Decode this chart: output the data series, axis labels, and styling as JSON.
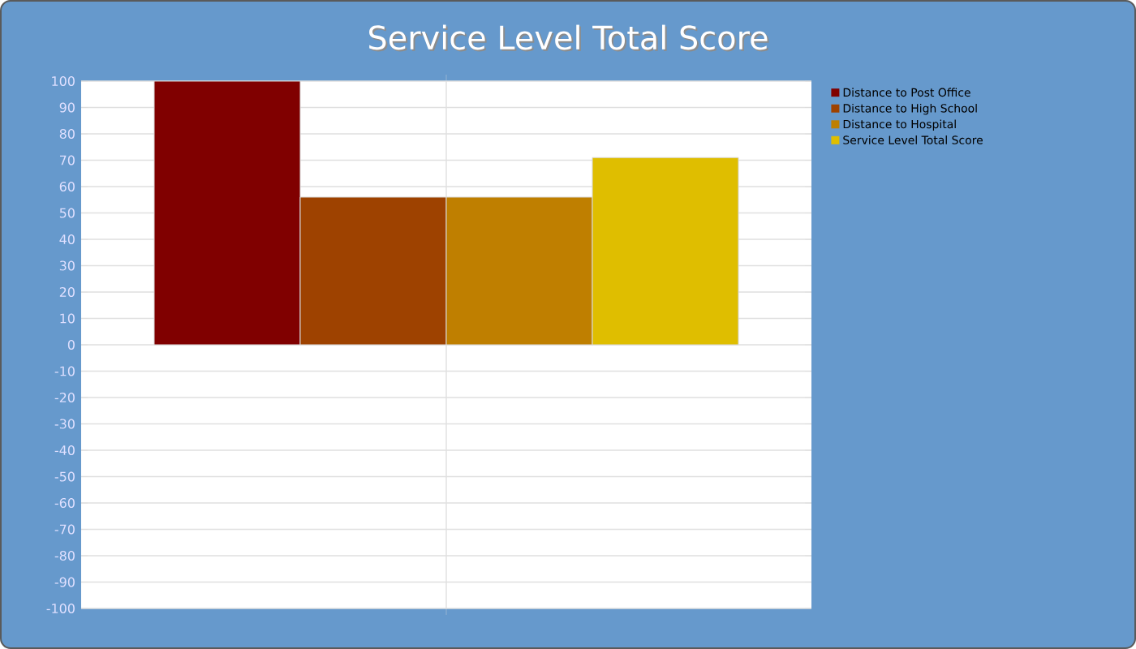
{
  "chart_data": {
    "type": "bar",
    "title": "Service Level Total Score",
    "categories": [
      null
    ],
    "series": [
      {
        "name": "Distance to Post Office",
        "color": "#800000",
        "values": [
          100
        ]
      },
      {
        "name": "Distance to High School",
        "color": "#9e4200",
        "values": [
          56
        ]
      },
      {
        "name": "Distance to Hospital",
        "color": "#bf7f00",
        "values": [
          56
        ]
      },
      {
        "name": "Service Level Total Score",
        "color": "#dfbe00",
        "values": [
          71
        ]
      }
    ],
    "ylim": [
      -100,
      100
    ],
    "yticks": [
      -100,
      -90,
      -80,
      -70,
      -60,
      -50,
      -40,
      -30,
      -20,
      -10,
      0,
      10,
      20,
      30,
      40,
      50,
      60,
      70,
      80,
      90,
      100
    ],
    "grid": true,
    "legend": "top right"
  }
}
